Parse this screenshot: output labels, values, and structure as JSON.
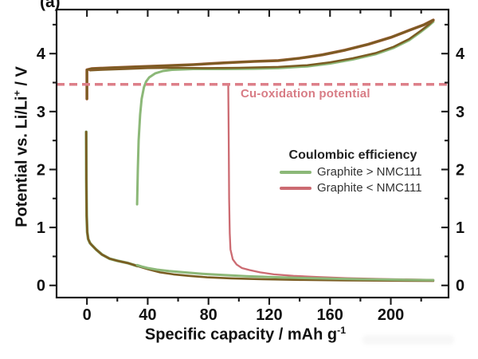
{
  "panel_label": "(a)",
  "axes": {
    "x": {
      "label_main": "Specific capacity / mAh g",
      "label_sup": "-1",
      "major_ticks": [
        0,
        40,
        80,
        120,
        160,
        200
      ],
      "minor_ticks": [
        20,
        60,
        100,
        140,
        180,
        220
      ]
    },
    "y": {
      "label_main": "Potential vs. Li/Li",
      "label_sup": "+",
      "label_suffix": " / V",
      "major_ticks": [
        0,
        1,
        2,
        3,
        4
      ],
      "minor_ticks": [
        0.5,
        1.5,
        2.5,
        3.5,
        4.5
      ]
    }
  },
  "annotation": {
    "text": "Cu-oxidation potential",
    "color": "#d87c85"
  },
  "legend": {
    "title": "Coulombic efficiency",
    "items": [
      {
        "label": "Graphite > NMC111",
        "color": "#8cb878"
      },
      {
        "label": "Graphite < NMC111",
        "color": "#cc6b72"
      }
    ]
  },
  "colors": {
    "frame": "#1a1a1a",
    "tick_text": "#111111",
    "brown": "#7a5c22",
    "brown_red_underlay": "#9e5a35",
    "green": "#8cb878",
    "green_light": "#a9cd8f",
    "red": "#cc6b72",
    "dashed": "#dd7f89"
  },
  "chart_data": {
    "type": "line",
    "xlabel": "Specific capacity / mAh g^-1",
    "ylabel": "Potential vs. Li/Li+ / V",
    "xlim": [
      -20,
      238
    ],
    "ylim": [
      -0.21,
      4.76
    ],
    "grid": false,
    "legend_position": "center-right",
    "hline": {
      "y": 3.47,
      "style": "dashed",
      "dash": "10 6",
      "width": 3.5,
      "label": "Cu-oxidation potential"
    },
    "series": [
      {
        "name": "anode-potential-green-charge-rise",
        "color": "#8cb878",
        "width": 3,
        "points": [
          [
            33,
            1.4
          ],
          [
            33.5,
            2.0
          ],
          [
            34,
            2.5
          ],
          [
            35,
            2.95
          ],
          [
            36,
            3.22
          ],
          [
            37.5,
            3.42
          ],
          [
            39,
            3.52
          ],
          [
            41,
            3.59
          ],
          [
            45,
            3.66
          ],
          [
            50,
            3.7
          ],
          [
            56,
            3.72
          ],
          [
            70,
            3.735
          ],
          [
            90,
            3.735
          ],
          [
            110,
            3.74
          ],
          [
            126,
            3.75
          ],
          [
            145,
            3.78
          ],
          [
            160,
            3.83
          ],
          [
            175,
            3.9
          ],
          [
            190,
            3.99
          ],
          [
            202,
            4.1
          ],
          [
            212,
            4.23
          ],
          [
            220,
            4.38
          ],
          [
            225,
            4.48
          ],
          [
            228,
            4.55
          ]
        ]
      },
      {
        "name": "cathode-discharge-lower-brown",
        "color": "#7a5c22",
        "width": 2.5,
        "points": [
          [
            2,
            3.71
          ],
          [
            10,
            3.72
          ],
          [
            25,
            3.735
          ],
          [
            40,
            3.75
          ],
          [
            60,
            3.755
          ],
          [
            80,
            3.75
          ],
          [
            100,
            3.755
          ],
          [
            126,
            3.77
          ],
          [
            145,
            3.8
          ],
          [
            160,
            3.85
          ],
          [
            175,
            3.92
          ],
          [
            190,
            4.01
          ],
          [
            202,
            4.12
          ],
          [
            212,
            4.25
          ],
          [
            220,
            4.4
          ],
          [
            225,
            4.5
          ],
          [
            228,
            4.57
          ]
        ]
      },
      {
        "name": "cathode-charge-upper-brown",
        "color": "#7a5c22",
        "width": 2.4,
        "underlay_color": "#9e5a35",
        "underlay_width": 3.6,
        "points": [
          [
            0,
            3.22
          ],
          [
            0,
            3.72
          ],
          [
            3,
            3.74
          ],
          [
            15,
            3.755
          ],
          [
            30,
            3.77
          ],
          [
            50,
            3.79
          ],
          [
            70,
            3.81
          ],
          [
            90,
            3.84
          ],
          [
            110,
            3.865
          ],
          [
            126,
            3.88
          ],
          [
            140,
            3.92
          ],
          [
            155,
            3.98
          ],
          [
            170,
            4.06
          ],
          [
            185,
            4.16
          ],
          [
            200,
            4.28
          ],
          [
            212,
            4.4
          ],
          [
            222,
            4.5
          ],
          [
            228,
            4.58
          ]
        ]
      },
      {
        "name": "anode-potential-red-rise-to-cu-oxidation",
        "color": "#cc6b72",
        "width": 2.3,
        "points": [
          [
            93,
            3.46
          ],
          [
            93.3,
            2.5
          ],
          [
            93.6,
            1.5
          ],
          [
            94,
            0.9
          ],
          [
            94.5,
            0.62
          ],
          [
            96,
            0.45
          ],
          [
            98.5,
            0.36
          ],
          [
            102,
            0.3
          ],
          [
            107,
            0.265
          ],
          [
            114,
            0.225
          ],
          [
            123,
            0.19
          ],
          [
            136,
            0.165
          ],
          [
            151,
            0.145
          ],
          [
            171,
            0.125
          ],
          [
            196,
            0.11
          ],
          [
            228,
            0.095
          ]
        ]
      },
      {
        "name": "graphite-anode-vertical-green-underlay",
        "color": "#8cb878",
        "width": 3.6,
        "points": [
          [
            -0.5,
            2.65
          ],
          [
            -0.4,
            1.8
          ],
          [
            -0.2,
            1.2
          ],
          [
            0.2,
            0.92
          ],
          [
            0.8,
            0.8
          ],
          [
            2,
            0.73
          ],
          [
            3,
            0.7
          ],
          [
            6,
            0.62
          ],
          [
            10,
            0.53
          ],
          [
            15,
            0.46
          ],
          [
            20,
            0.425
          ],
          [
            27,
            0.385
          ],
          [
            33,
            0.335
          ]
        ]
      },
      {
        "name": "graphite-anode-brown",
        "color": "#7a5c22",
        "width": 2.6,
        "points": [
          [
            -0.5,
            2.65
          ],
          [
            -0.4,
            1.8
          ],
          [
            -0.2,
            1.2
          ],
          [
            0.2,
            0.92
          ],
          [
            0.8,
            0.8
          ],
          [
            2,
            0.73
          ],
          [
            3,
            0.7
          ],
          [
            6,
            0.62
          ],
          [
            10,
            0.53
          ],
          [
            15,
            0.46
          ],
          [
            20,
            0.425
          ],
          [
            27,
            0.385
          ],
          [
            33,
            0.335
          ],
          [
            40,
            0.28
          ],
          [
            48,
            0.225
          ],
          [
            57,
            0.19
          ],
          [
            68,
            0.163
          ],
          [
            79,
            0.14
          ],
          [
            95,
            0.122
          ],
          [
            115,
            0.107
          ],
          [
            140,
            0.096
          ],
          [
            170,
            0.088
          ],
          [
            200,
            0.082
          ],
          [
            228,
            0.078
          ]
        ]
      },
      {
        "name": "graphite-anode-green-discharge",
        "color": "#8cb878",
        "width": 3,
        "points": [
          [
            33,
            0.35
          ],
          [
            36,
            0.325
          ],
          [
            40,
            0.3
          ],
          [
            46,
            0.272
          ],
          [
            54,
            0.248
          ],
          [
            64,
            0.225
          ],
          [
            76,
            0.2
          ],
          [
            90,
            0.178
          ],
          [
            105,
            0.158
          ],
          [
            122,
            0.142
          ],
          [
            140,
            0.128
          ],
          [
            160,
            0.116
          ],
          [
            180,
            0.107
          ],
          [
            205,
            0.098
          ],
          [
            228,
            0.092
          ]
        ]
      }
    ]
  }
}
